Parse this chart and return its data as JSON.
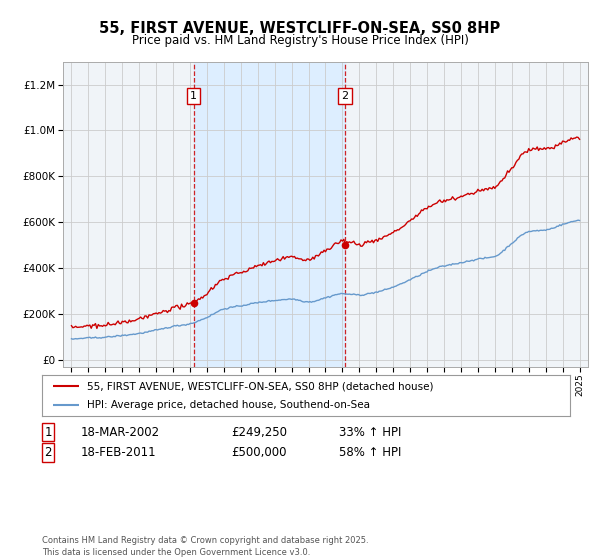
{
  "title": "55, FIRST AVENUE, WESTCLIFF-ON-SEA, SS0 8HP",
  "subtitle": "Price paid vs. HM Land Registry's House Price Index (HPI)",
  "legend_label_red": "55, FIRST AVENUE, WESTCLIFF-ON-SEA, SS0 8HP (detached house)",
  "legend_label_blue": "HPI: Average price, detached house, Southend-on-Sea",
  "sale1_date": "18-MAR-2002",
  "sale1_price": "£249,250",
  "sale1_hpi": "33% ↑ HPI",
  "sale1_year": 2002.21,
  "sale1_value": 249250,
  "sale2_date": "18-FEB-2011",
  "sale2_price": "£500,000",
  "sale2_hpi": "58% ↑ HPI",
  "sale2_year": 2011.13,
  "sale2_value": 500000,
  "shade_start": 2002.21,
  "shade_end": 2011.13,
  "ylim_min": -30000,
  "ylim_max": 1300000,
  "xlim_min": 1994.5,
  "xlim_max": 2025.5,
  "grid_color": "#cccccc",
  "bg_color": "#f0f4f8",
  "red_color": "#cc0000",
  "blue_color": "#6699cc",
  "shade_color": "#ddeeff",
  "footnote": "Contains HM Land Registry data © Crown copyright and database right 2025.\nThis data is licensed under the Open Government Licence v3.0."
}
